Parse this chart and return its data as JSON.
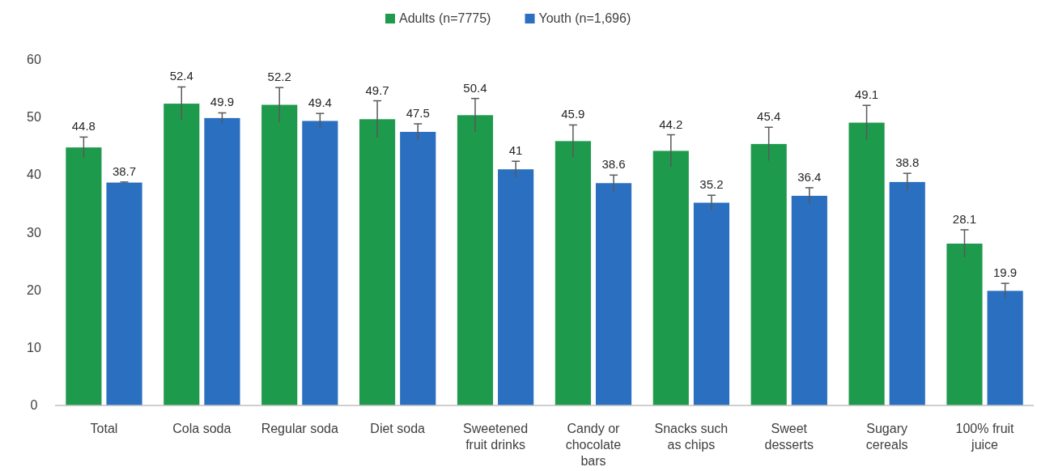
{
  "chart_data": {
    "type": "bar",
    "categories": [
      "Total",
      "Cola soda",
      "Regular soda",
      "Diet soda",
      "Sweetened fruit drinks",
      "Candy or chocolate bars",
      "Snacks such as chips",
      "Sweet desserts",
      "Sugary cereals",
      "100% fruit juice"
    ],
    "series": [
      {
        "name": "Adults (n=7775)",
        "color": "#1e9a4c",
        "values": [
          44.8,
          52.4,
          52.2,
          49.7,
          50.4,
          45.9,
          44.2,
          45.4,
          49.1,
          28.1
        ],
        "errors": [
          1.8,
          2.9,
          3.0,
          3.2,
          2.9,
          2.8,
          2.8,
          2.9,
          3.0,
          2.4
        ]
      },
      {
        "name": "Youth (n=1,696)",
        "color": "#2a6fc0",
        "values": [
          38.7,
          49.9,
          49.4,
          47.5,
          41,
          38.6,
          35.2,
          36.4,
          38.8,
          19.9
        ],
        "errors": [
          0.1,
          0.9,
          1.3,
          1.4,
          1.4,
          1.4,
          1.3,
          1.4,
          1.5,
          1.3
        ]
      }
    ],
    "ylim": [
      0,
      60
    ],
    "yticks": [
      0,
      10,
      20,
      30,
      40,
      50,
      60
    ],
    "data_labels": true,
    "legend": "top",
    "grid": false
  }
}
